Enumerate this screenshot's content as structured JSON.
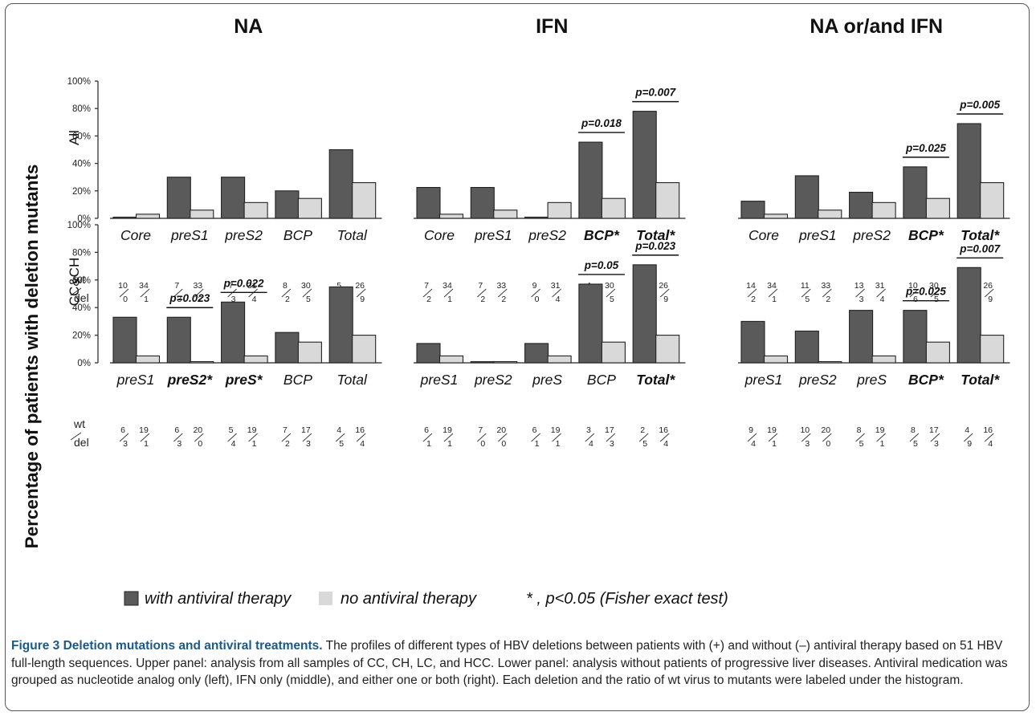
{
  "figure": {
    "y_axis_title": "Percentage of patients with deletion mutants",
    "legend": [
      {
        "label": "with antiviral therapy",
        "color": "#5a5a5a"
      },
      {
        "label": "no antiviral therapy",
        "color": "#d9d9d9"
      },
      {
        "label": "* , p<0.05 (Fisher exact test)"
      }
    ],
    "caption": {
      "title": "Figure 3 Deletion mutations and antiviral treatments.",
      "body": " The profiles of different types of HBV deletions between patients with (+) and without (–) antiviral therapy based on 51 HBV full-length sequences. Upper panel: analysis from all samples of CC, CH, LC, and HCC. Lower panel: analysis without patients of progressive liver diseases. Antiviral medication was grouped as nucleotide analog only (left), IFN only (middle), and either one or both (right). Each deletion and the ratio of wt virus to mutants were labeled under the histogram."
    }
  },
  "chart_data": [
    {
      "type": "bar",
      "title": "NA",
      "ylabel": "All",
      "ylim": [
        0,
        100
      ],
      "yticks": [
        "0%",
        "20%",
        "40%",
        "60%",
        "80%",
        "100%"
      ],
      "ratio_labels": [
        "wt",
        "del"
      ],
      "categories": [
        {
          "label": "Core",
          "bold": false,
          "with": 0,
          "no": 3,
          "ratio_with": [
            "10",
            "0"
          ],
          "ratio_no": [
            "34",
            "1"
          ],
          "p": ""
        },
        {
          "label": "preS1",
          "bold": false,
          "with": 30,
          "no": 6,
          "ratio_with": [
            "7",
            "3"
          ],
          "ratio_no": [
            "33",
            "2"
          ],
          "p": ""
        },
        {
          "label": "preS2",
          "bold": false,
          "with": 30,
          "no": 11.5,
          "ratio_with": [
            "7",
            "3"
          ],
          "ratio_no": [
            "31",
            "4"
          ],
          "p": ""
        },
        {
          "label": "BCP",
          "bold": false,
          "with": 20,
          "no": 14.5,
          "ratio_with": [
            "8",
            "2"
          ],
          "ratio_no": [
            "30",
            "5"
          ],
          "p": ""
        },
        {
          "label": "Total",
          "bold": false,
          "with": 50,
          "no": 26,
          "ratio_with": [
            "5",
            "5"
          ],
          "ratio_no": [
            "26",
            "9"
          ],
          "p": ""
        }
      ]
    },
    {
      "type": "bar",
      "title": "IFN",
      "ylim": [
        0,
        100
      ],
      "categories": [
        {
          "label": "Core",
          "bold": false,
          "with": 22.5,
          "no": 3,
          "ratio_with": [
            "7",
            "2"
          ],
          "ratio_no": [
            "34",
            "1"
          ],
          "p": ""
        },
        {
          "label": "preS1",
          "bold": false,
          "with": 22.5,
          "no": 6,
          "ratio_with": [
            "7",
            "2"
          ],
          "ratio_no": [
            "33",
            "2"
          ],
          "p": ""
        },
        {
          "label": "preS2",
          "bold": false,
          "with": 0,
          "no": 11.5,
          "ratio_with": [
            "9",
            "0"
          ],
          "ratio_no": [
            "31",
            "4"
          ],
          "p": ""
        },
        {
          "label": "BCP*",
          "bold": true,
          "with": 55.5,
          "no": 14.5,
          "ratio_with": [
            "4",
            "5"
          ],
          "ratio_no": [
            "30",
            "5"
          ],
          "p": "p=0.018"
        },
        {
          "label": "Total*",
          "bold": true,
          "with": 78,
          "no": 26,
          "ratio_with": [
            "2",
            "7"
          ],
          "ratio_no": [
            "26",
            "9"
          ],
          "p": "p=0.007"
        }
      ]
    },
    {
      "type": "bar",
      "title": "NA or/and IFN",
      "ylim": [
        0,
        100
      ],
      "categories": [
        {
          "label": "Core",
          "bold": false,
          "with": 12.5,
          "no": 3,
          "ratio_with": [
            "14",
            "2"
          ],
          "ratio_no": [
            "34",
            "1"
          ],
          "p": ""
        },
        {
          "label": "preS1",
          "bold": false,
          "with": 31,
          "no": 6,
          "ratio_with": [
            "11",
            "5"
          ],
          "ratio_no": [
            "33",
            "2"
          ],
          "p": ""
        },
        {
          "label": "preS2",
          "bold": false,
          "with": 19,
          "no": 11.5,
          "ratio_with": [
            "13",
            "3"
          ],
          "ratio_no": [
            "31",
            "4"
          ],
          "p": ""
        },
        {
          "label": "BCP*",
          "bold": true,
          "with": 37.5,
          "no": 14.5,
          "ratio_with": [
            "10",
            "6"
          ],
          "ratio_no": [
            "30",
            "5"
          ],
          "p": "p=0.025"
        },
        {
          "label": "Total*",
          "bold": true,
          "with": 69,
          "no": 26,
          "ratio_with": [
            "5",
            "11"
          ],
          "ratio_no": [
            "26",
            "9"
          ],
          "p": "p=0.005"
        }
      ]
    },
    {
      "type": "bar",
      "ylabel": "CC&CH",
      "ylim": [
        0,
        100
      ],
      "yticks": [
        "0%",
        "20%",
        "40%",
        "60%",
        "80%",
        "100%"
      ],
      "ratio_labels": [
        "wt",
        "del"
      ],
      "categories": [
        {
          "label": "preS1",
          "bold": false,
          "with": 33,
          "no": 5,
          "ratio_with": [
            "6",
            "3"
          ],
          "ratio_no": [
            "19",
            "1"
          ],
          "p": ""
        },
        {
          "label": "preS2*",
          "bold": true,
          "with": 33,
          "no": 0,
          "ratio_with": [
            "6",
            "3"
          ],
          "ratio_no": [
            "20",
            "0"
          ],
          "p": "p=0.023"
        },
        {
          "label": "preS*",
          "bold": true,
          "with": 44,
          "no": 5,
          "ratio_with": [
            "5",
            "4"
          ],
          "ratio_no": [
            "19",
            "1"
          ],
          "p": "p=0.022"
        },
        {
          "label": "BCP",
          "bold": false,
          "with": 22,
          "no": 15,
          "ratio_with": [
            "7",
            "2"
          ],
          "ratio_no": [
            "17",
            "3"
          ],
          "p": ""
        },
        {
          "label": "Total",
          "bold": false,
          "with": 55,
          "no": 20,
          "ratio_with": [
            "4",
            "5"
          ],
          "ratio_no": [
            "16",
            "4"
          ],
          "p": ""
        }
      ]
    },
    {
      "type": "bar",
      "ylim": [
        0,
        100
      ],
      "categories": [
        {
          "label": "preS1",
          "bold": false,
          "with": 14,
          "no": 5,
          "ratio_with": [
            "6",
            "1"
          ],
          "ratio_no": [
            "19",
            "1"
          ],
          "p": ""
        },
        {
          "label": "preS2",
          "bold": false,
          "with": 0,
          "no": 0,
          "ratio_with": [
            "7",
            "0"
          ],
          "ratio_no": [
            "20",
            "0"
          ],
          "p": ""
        },
        {
          "label": "preS",
          "bold": false,
          "with": 14,
          "no": 5,
          "ratio_with": [
            "6",
            "1"
          ],
          "ratio_no": [
            "19",
            "1"
          ],
          "p": ""
        },
        {
          "label": "BCP",
          "bold": false,
          "with": 57,
          "no": 15,
          "ratio_with": [
            "3",
            "4"
          ],
          "ratio_no": [
            "17",
            "3"
          ],
          "p": "p=0.05"
        },
        {
          "label": "Total*",
          "bold": true,
          "with": 71,
          "no": 20,
          "ratio_with": [
            "2",
            "5"
          ],
          "ratio_no": [
            "16",
            "4"
          ],
          "p": "p=0.023"
        }
      ]
    },
    {
      "type": "bar",
      "ylim": [
        0,
        100
      ],
      "categories": [
        {
          "label": "preS1",
          "bold": false,
          "with": 30,
          "no": 5,
          "ratio_with": [
            "9",
            "4"
          ],
          "ratio_no": [
            "19",
            "1"
          ],
          "p": ""
        },
        {
          "label": "preS2",
          "bold": false,
          "with": 23,
          "no": 0,
          "ratio_with": [
            "10",
            "3"
          ],
          "ratio_no": [
            "20",
            "0"
          ],
          "p": ""
        },
        {
          "label": "preS",
          "bold": false,
          "with": 38,
          "no": 5,
          "ratio_with": [
            "8",
            "5"
          ],
          "ratio_no": [
            "19",
            "1"
          ],
          "p": ""
        },
        {
          "label": "BCP*",
          "bold": true,
          "with": 38,
          "no": 15,
          "ratio_with": [
            "8",
            "5"
          ],
          "ratio_no": [
            "17",
            "3"
          ],
          "p": "p=0.025"
        },
        {
          "label": "Total*",
          "bold": true,
          "with": 69,
          "no": 20,
          "ratio_with": [
            "4",
            "9"
          ],
          "ratio_no": [
            "16",
            "4"
          ],
          "p": "p=0.007"
        }
      ]
    }
  ]
}
